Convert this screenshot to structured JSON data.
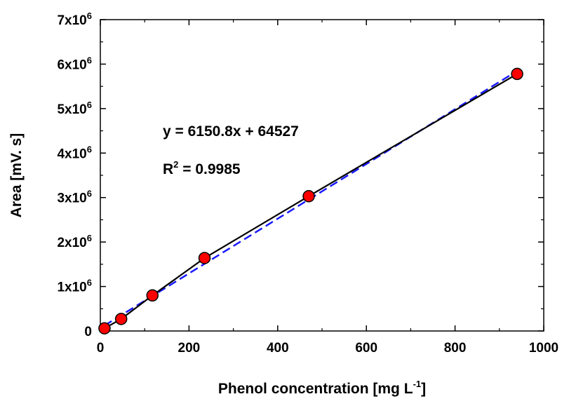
{
  "chart_data": {
    "type": "scatter",
    "title": "",
    "xlabel": {
      "text": "Phenol concentration [mg L",
      "superscript": "-1",
      "suffix": "]"
    },
    "ylabel": "Area [mV. s]",
    "xlim": [
      0,
      1000
    ],
    "ylim": [
      0,
      7000000
    ],
    "x_ticks": [
      0,
      200,
      400,
      600,
      800,
      1000
    ],
    "x_tick_labels": [
      "0",
      "200",
      "400",
      "600",
      "800",
      "1000"
    ],
    "y_ticks": [
      0,
      1000000,
      2000000,
      3000000,
      4000000,
      5000000,
      6000000,
      7000000
    ],
    "y_tick_labels": [
      {
        "base": "0",
        "exp": ""
      },
      {
        "base": "1x10",
        "exp": "6"
      },
      {
        "base": "2x10",
        "exp": "6"
      },
      {
        "base": "3x10",
        "exp": "6"
      },
      {
        "base": "4x10",
        "exp": "6"
      },
      {
        "base": "5x10",
        "exp": "6"
      },
      {
        "base": "6x10",
        "exp": "6"
      },
      {
        "base": "7x10",
        "exp": "6"
      }
    ],
    "grid": false,
    "legend": "none",
    "series": [
      {
        "kind": "points-connected",
        "x": [
          9.4,
          47,
          117.5,
          235,
          470,
          940
        ],
        "y": [
          60000,
          270000,
          800000,
          1640000,
          3030000,
          5780000
        ],
        "marker_color": "#ff0000",
        "line_color": "#000000"
      },
      {
        "kind": "linear-fit",
        "slope": 6150.8,
        "intercept": 64527,
        "x_range": [
          9.4,
          940
        ],
        "line_color": "#1a1aff",
        "dashed": true
      }
    ],
    "annotations": {
      "equation": "y = 6150.8x + 64527",
      "r2_prefix": "R",
      "r2_sup": "2",
      "r2_value": " = 0.9985"
    }
  }
}
